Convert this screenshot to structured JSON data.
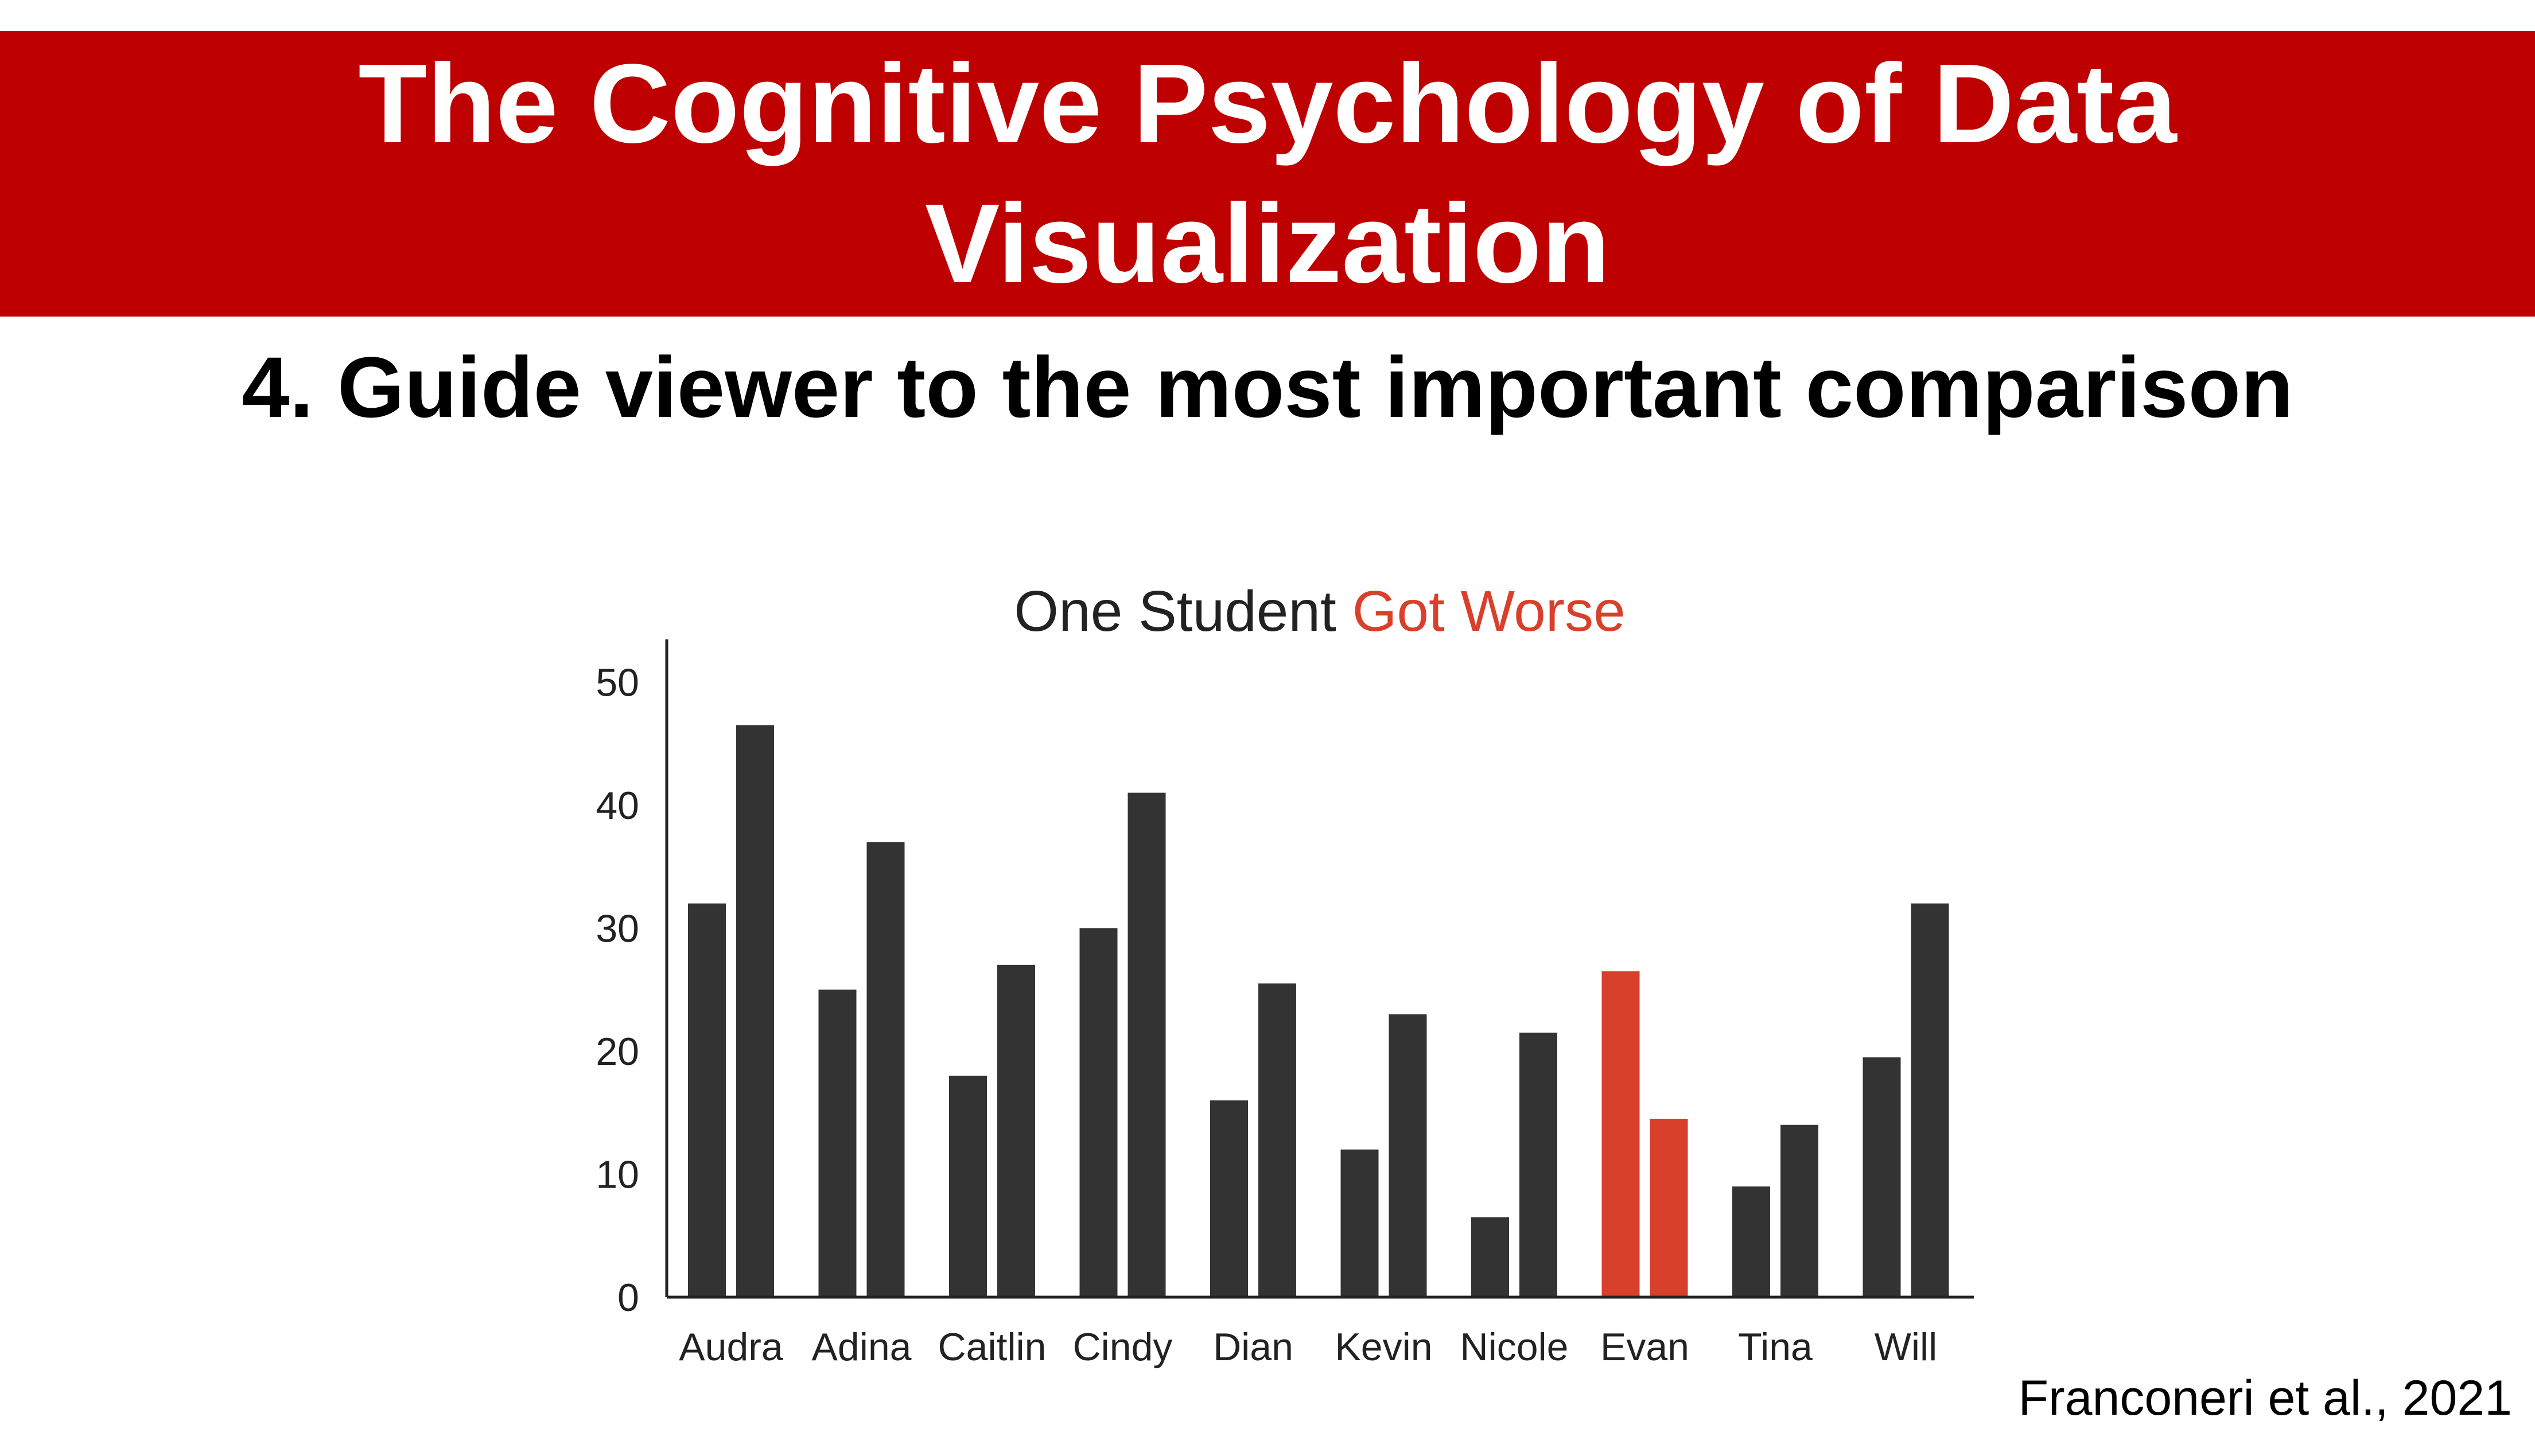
{
  "slide": {
    "title": "The Cognitive Psychology of Data Visualization",
    "subtitle": "4. Guide viewer to the most important comparison",
    "citation": "Franconeri et al., 2021"
  },
  "colors": {
    "banner": "#bf0000",
    "bar_default": "#333333",
    "bar_highlight": "#d9402b",
    "title_highlight": "#d9402b"
  },
  "chart_data": {
    "type": "bar",
    "title_parts": [
      {
        "text": "One Student ",
        "highlight": false
      },
      {
        "text": "Got Worse",
        "highlight": true
      }
    ],
    "categories": [
      "Audra",
      "Adina",
      "Caitlin",
      "Cindy",
      "Dian",
      "Kevin",
      "Nicole",
      "Evan",
      "Tina",
      "Will"
    ],
    "series": [
      {
        "values": [
          32,
          25,
          18,
          30,
          16,
          12,
          6.5,
          26.5,
          9,
          19.5
        ]
      },
      {
        "values": [
          46.5,
          37,
          27,
          41,
          25.5,
          23,
          21.5,
          14.5,
          14,
          32
        ]
      }
    ],
    "highlight_category": "Evan",
    "ylim": [
      0,
      53
    ],
    "yticks": [
      0,
      10,
      20,
      30,
      40,
      50
    ],
    "xlabel": "",
    "ylabel": "",
    "grid": false,
    "legend": "none"
  }
}
